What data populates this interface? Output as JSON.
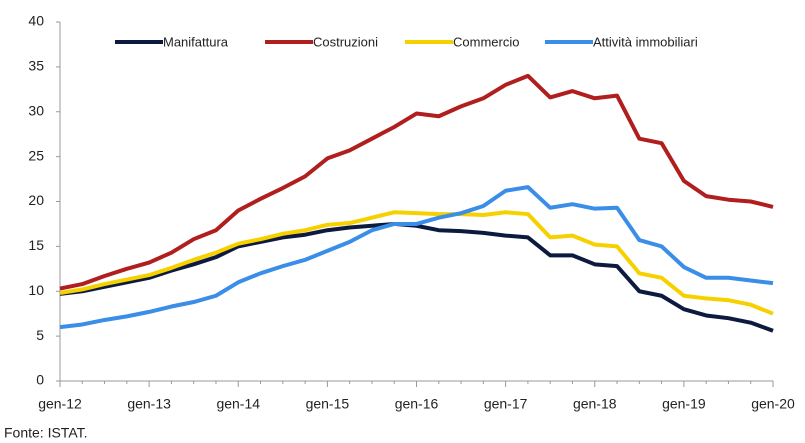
{
  "chart_data": {
    "type": "line",
    "categories": [
      "gen-12",
      null,
      null,
      null,
      "gen-13",
      null,
      null,
      null,
      "gen-14",
      null,
      null,
      null,
      "gen-15",
      null,
      null,
      null,
      "gen-16",
      null,
      null,
      null,
      "gen-17",
      null,
      null,
      null,
      "gen-18",
      null,
      null,
      null,
      "gen-19",
      null,
      null,
      null,
      "gen-20"
    ],
    "series": [
      {
        "name": "Manifattura",
        "color": "#0d1a3f",
        "values": [
          9.7,
          10.0,
          10.5,
          11.0,
          11.5,
          12.3,
          13.0,
          13.8,
          15.0,
          15.5,
          16.0,
          16.3,
          16.8,
          17.1,
          17.3,
          17.5,
          17.3,
          16.8,
          16.7,
          16.5,
          16.2,
          16.0,
          14.0,
          14.0,
          13.0,
          12.8,
          10.0,
          9.5,
          8.0,
          7.3,
          7.0,
          6.5,
          5.6
        ]
      },
      {
        "name": "Costruzioni",
        "color": "#b01e1e",
        "values": [
          10.3,
          10.8,
          11.7,
          12.5,
          13.2,
          14.3,
          15.8,
          16.8,
          19.0,
          20.3,
          21.5,
          22.8,
          24.8,
          25.7,
          27.0,
          28.3,
          29.8,
          29.5,
          30.6,
          31.5,
          33.0,
          34.0,
          31.6,
          32.3,
          31.5,
          31.8,
          27.0,
          26.5,
          22.3,
          20.6,
          20.2,
          20.0,
          19.4
        ]
      },
      {
        "name": "Commercio",
        "color": "#f7d000",
        "values": [
          9.8,
          10.2,
          10.8,
          11.3,
          11.8,
          12.6,
          13.5,
          14.3,
          15.3,
          15.8,
          16.4,
          16.8,
          17.4,
          17.6,
          18.2,
          18.8,
          18.7,
          18.6,
          18.6,
          18.5,
          18.8,
          18.6,
          16.0,
          16.2,
          15.2,
          15.0,
          12.0,
          11.5,
          9.5,
          9.2,
          9.0,
          8.5,
          7.5
        ]
      },
      {
        "name": "Attività immobiliari",
        "color": "#3b8ee8",
        "values": [
          6.0,
          6.3,
          6.8,
          7.2,
          7.7,
          8.3,
          8.8,
          9.5,
          11.0,
          12.0,
          12.8,
          13.5,
          14.5,
          15.5,
          16.8,
          17.5,
          17.5,
          18.2,
          18.7,
          19.5,
          21.2,
          21.6,
          19.3,
          19.7,
          19.2,
          19.3,
          15.7,
          15.0,
          12.7,
          11.5,
          11.5,
          11.2,
          10.9
        ]
      }
    ],
    "ylim": [
      0,
      40
    ],
    "yticks": [
      0,
      5,
      10,
      15,
      20,
      25,
      30,
      35,
      40
    ],
    "legend": "top",
    "source": "Fonte: ISTAT."
  }
}
